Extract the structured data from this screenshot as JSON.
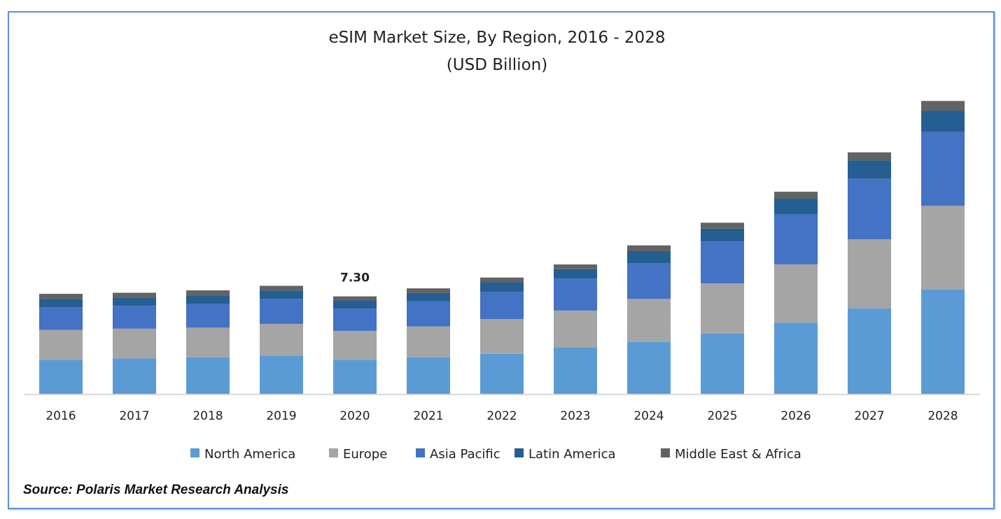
{
  "chart_data": {
    "type": "bar",
    "stacked": true,
    "title": "eSIM Market Size, By Region, 2016 - 2028",
    "subtitle": "(USD Billion)",
    "xlabel": "",
    "ylabel": "",
    "ylim": [
      0,
      22
    ],
    "grid": false,
    "legend_position": "bottom",
    "categories": [
      "2016",
      "2017",
      "2018",
      "2019",
      "2020",
      "2021",
      "2022",
      "2023",
      "2024",
      "2025",
      "2026",
      "2027",
      "2028"
    ],
    "series": [
      {
        "name": "North America",
        "color": "#5b9bd5",
        "values": [
          2.55,
          2.66,
          2.74,
          2.83,
          2.55,
          2.74,
          3.0,
          3.46,
          3.89,
          4.51,
          5.33,
          6.39,
          7.82
        ]
      },
      {
        "name": "Europe",
        "color": "#a5a5a5",
        "values": [
          2.23,
          2.22,
          2.22,
          2.41,
          2.16,
          2.31,
          2.6,
          2.78,
          3.22,
          3.76,
          4.37,
          5.19,
          6.26
        ]
      },
      {
        "name": "Asia Pacific",
        "color": "#4472c4",
        "values": [
          1.7,
          1.71,
          1.78,
          1.87,
          1.68,
          1.89,
          2.03,
          2.39,
          2.67,
          3.14,
          3.77,
          4.54,
          5.53
        ]
      },
      {
        "name": "Latin America",
        "color": "#255e91",
        "values": [
          0.63,
          0.63,
          0.64,
          0.63,
          0.61,
          0.61,
          0.73,
          0.71,
          0.91,
          0.97,
          1.15,
          1.36,
          1.61
        ]
      },
      {
        "name": "Middle East & Africa",
        "color": "#636363",
        "values": [
          0.38,
          0.35,
          0.37,
          0.35,
          0.3,
          0.35,
          0.35,
          0.35,
          0.43,
          0.44,
          0.52,
          0.61,
          0.72
        ]
      }
    ],
    "annotations": [
      {
        "category": "2020",
        "text": "7.30"
      }
    ]
  },
  "source": "Source: Polaris  Market Research Analysis"
}
